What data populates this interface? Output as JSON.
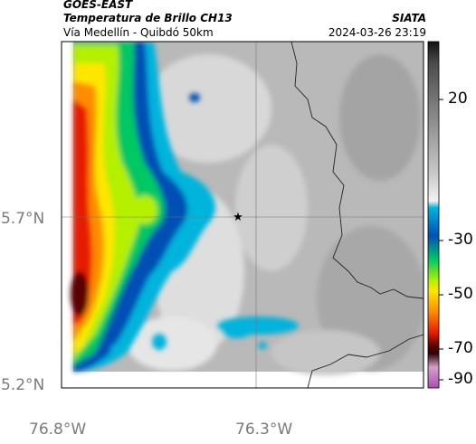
{
  "header": {
    "satellite": "GOES-EAST",
    "product": "Temperatura de Brillo CH13",
    "route": "Vía Medellín - Quibdó 50km",
    "organization": "SIATA",
    "timestamp": "2024-03-26 23:19"
  },
  "axes": {
    "lat_ticks": [
      "5.7°N",
      "5.2°N"
    ],
    "lon_ticks": [
      "76.8°W",
      "76.3°W"
    ]
  },
  "colorbar": {
    "ticks": [
      "20",
      "-30",
      "-50",
      "-70",
      "-90"
    ],
    "stops": [
      "#111111",
      "#4a4a4a",
      "#8a8a8a",
      "#c8c8c8",
      "#f2f2f2",
      "#00b4dc",
      "#0050b4",
      "#00c864",
      "#b4f000",
      "#ffe600",
      "#ff8c00",
      "#e61e00",
      "#5a0000",
      "#2a0000",
      "#d2a0c8",
      "#b04cb8"
    ]
  },
  "marker": {
    "icon": "star-icon"
  }
}
